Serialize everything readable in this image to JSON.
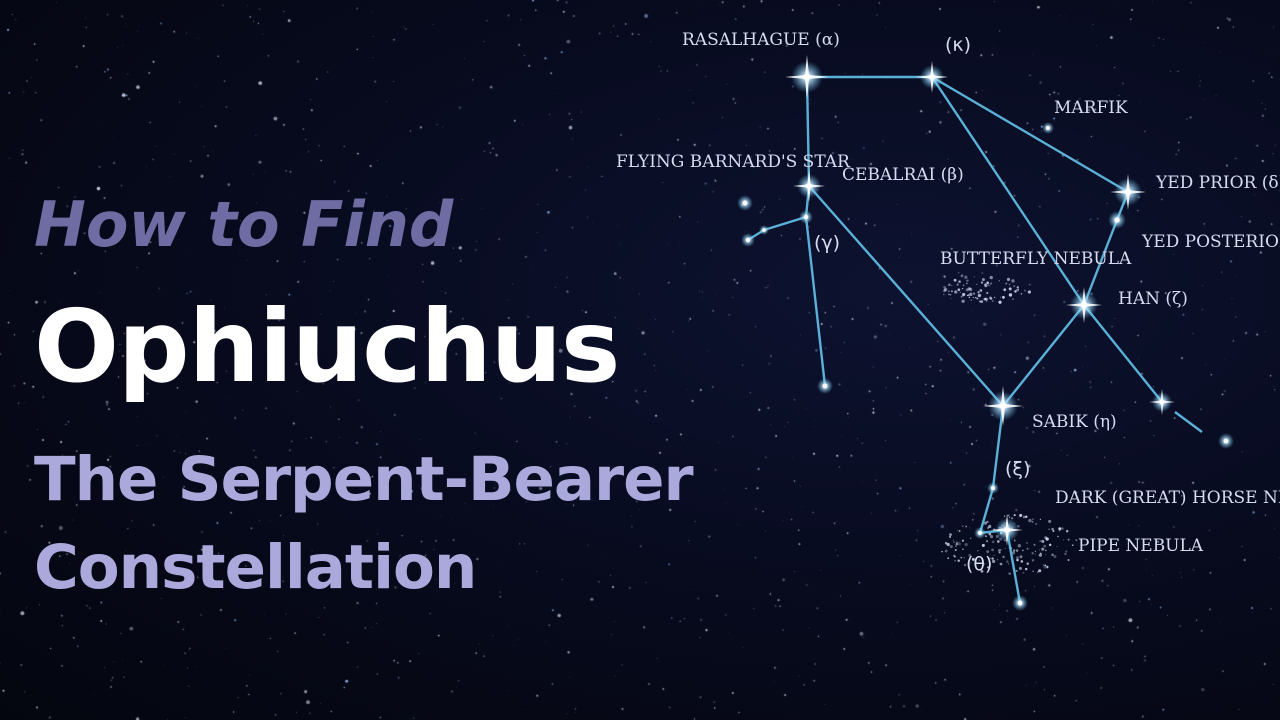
{
  "title": {
    "line1": "How to Find",
    "line2": "Ophiuchus",
    "line3": "The Serpent-Bearer",
    "line4": "Constellation"
  },
  "colors": {
    "background": "#060918",
    "constellation_line": "#5fb9e0",
    "title_accent": "#6f6ca4",
    "subtitle": "#aba9dc",
    "title_main": "#ffffff",
    "label": "#d8dcf0"
  },
  "labels": {
    "rasalhague": "RASALHAGUE (α)",
    "kappa": "(κ)",
    "marfik": "MARFIK",
    "barnard": "FLYING BARNARD'S STAR",
    "cebalrai": "CEBALRAI (β)",
    "gamma": "(γ)",
    "yed_prior": "YED PRIOR (δ)",
    "yed_posterior": "YED POSTERIOR (ε)",
    "butterfly": "BUTTERFLY NEBULA",
    "han": "HAN (ζ)",
    "sabik": "SABIK (η)",
    "xi": "(ξ)",
    "dark_horse": "DARK (GREAT) HORSE NEBULA",
    "pipe": "PIPE NEBULA",
    "theta": "(θ)"
  }
}
